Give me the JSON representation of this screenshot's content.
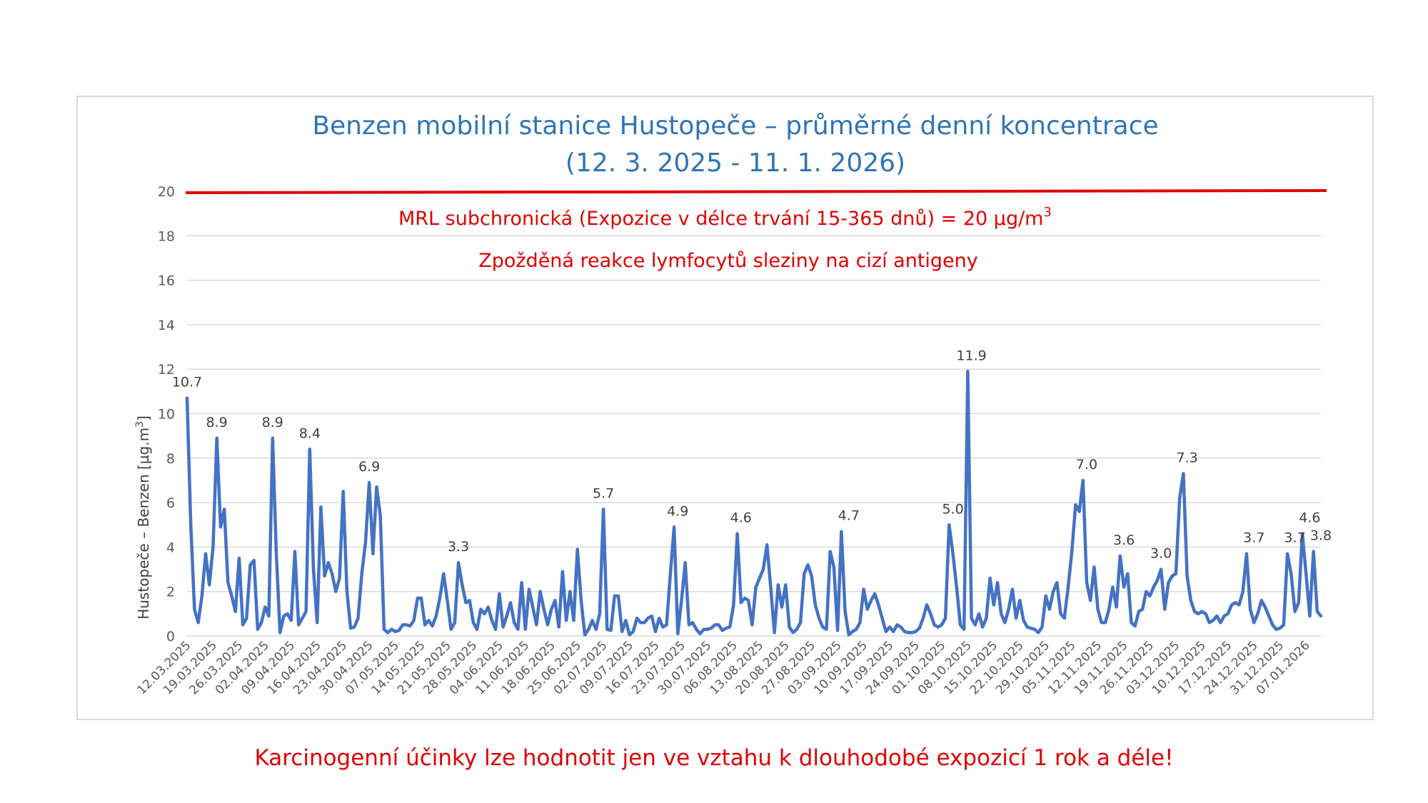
{
  "footer_note": "Karcinogenní účinky lze hodnotit jen ve vztahu k dlouhodobé expozicí 1 rok a déle!",
  "chart_data": {
    "type": "line",
    "title_line1": "Benzen mobilní stanice Hustopeče – průměrné denní koncentrace",
    "title_line2": "(12. 3. 2025 - 11. 1. 2026)",
    "ylabel_main": "Hustopeče – Benzen  [µg.m",
    "ylabel_sup": "3",
    "ylabel_end": "]",
    "ylim": [
      0,
      20
    ],
    "yticks": [
      "0",
      "2",
      "4",
      "6",
      "8",
      "10",
      "12",
      "14",
      "16",
      "18",
      "20"
    ],
    "grid": true,
    "x_start": "12.03.2025",
    "x_end": "11.01.2026",
    "x_tick_labels": [
      "12.03.2025",
      "19.03.2025",
      "26.03.2025",
      "02.04.2025",
      "09.04.2025",
      "16.04.2025",
      "23.04.2025",
      "30.04.2025",
      "07.05.2025",
      "14.05.2025",
      "21.05.2025",
      "28.05.2025",
      "04.06.2025",
      "11.06.2025",
      "18.06.2025",
      "25.06.2025",
      "02.07.2025",
      "09.07.2025",
      "16.07.2025",
      "23.07.2025",
      "30.07.2025",
      "06.08.2025",
      "13.08.2025",
      "20.08.2025",
      "27.08.2025",
      "03.09.2025",
      "10.09.2025",
      "17.09.2025",
      "24.09.2025",
      "01.10.2025",
      "08.10.2025",
      "15.10.2025",
      "22.10.2025",
      "29.10.2025",
      "05.11.2025",
      "12.11.2025",
      "19.11.2025",
      "26.11.2025",
      "03.12.2025",
      "10.12.2025",
      "17.12.2025",
      "24.12.2025",
      "31.12.2025",
      "07.01.2026"
    ],
    "limit_line": {
      "value": 20,
      "color": "#e00000",
      "label": "MRL subchronická (Expozice v délce trvání 15-365 dnů) = 20 µg/m",
      "label_sup": "3",
      "sublabel": "Zpožděná reakce lymfocytů sleziny na cizí antigeny"
    },
    "series": [
      {
        "color": "#4472c4",
        "values": [
          10.7,
          5.0,
          1.2,
          0.6,
          1.8,
          3.7,
          2.3,
          4.0,
          8.9,
          4.9,
          5.7,
          2.4,
          1.8,
          1.1,
          3.5,
          0.5,
          0.8,
          3.2,
          3.4,
          0.3,
          0.6,
          1.3,
          0.9,
          8.9,
          3.7,
          0.15,
          0.9,
          1.0,
          0.7,
          3.8,
          0.5,
          0.8,
          1.1,
          8.4,
          3.0,
          0.6,
          5.8,
          2.7,
          3.3,
          2.8,
          2.0,
          2.6,
          6.5,
          2.0,
          0.35,
          0.4,
          0.8,
          2.8,
          4.2,
          6.9,
          3.7,
          6.7,
          5.4,
          0.3,
          0.15,
          0.3,
          0.2,
          0.25,
          0.5,
          0.5,
          0.45,
          0.7,
          1.7,
          1.7,
          0.5,
          0.7,
          0.45,
          0.9,
          1.7,
          2.8,
          1.6,
          0.3,
          0.6,
          3.3,
          2.3,
          1.5,
          1.6,
          0.6,
          0.3,
          1.2,
          1.0,
          1.3,
          0.7,
          0.3,
          1.9,
          0.4,
          0.9,
          1.5,
          0.6,
          0.3,
          2.4,
          0.3,
          2.1,
          1.3,
          0.5,
          2.0,
          1.2,
          0.5,
          1.2,
          1.6,
          0.4,
          2.9,
          0.7,
          2.0,
          0.7,
          3.9,
          1.6,
          0.05,
          0.3,
          0.7,
          0.3,
          1.0,
          5.7,
          0.3,
          0.25,
          1.8,
          1.8,
          0.2,
          0.7,
          0.05,
          0.2,
          0.8,
          0.6,
          0.6,
          0.8,
          0.9,
          0.2,
          0.8,
          0.4,
          0.5,
          2.8,
          4.9,
          0.1,
          1.6,
          3.3,
          0.5,
          0.6,
          0.3,
          0.1,
          0.3,
          0.3,
          0.35,
          0.5,
          0.5,
          0.25,
          0.35,
          0.4,
          1.4,
          4.6,
          1.5,
          1.7,
          1.6,
          0.5,
          2.2,
          2.6,
          3.0,
          4.1,
          2.2,
          0.15,
          2.3,
          1.3,
          2.3,
          0.4,
          0.15,
          0.3,
          0.6,
          2.8,
          3.2,
          2.7,
          1.4,
          0.8,
          0.4,
          0.3,
          3.8,
          3.1,
          0.25,
          4.7,
          1.1,
          0.05,
          0.2,
          0.3,
          0.6,
          2.1,
          1.2,
          1.6,
          1.9,
          1.4,
          0.8,
          0.2,
          0.4,
          0.2,
          0.5,
          0.4,
          0.2,
          0.15,
          0.15,
          0.2,
          0.35,
          0.8,
          1.4,
          1.0,
          0.5,
          0.4,
          0.5,
          0.8,
          5.0,
          3.7,
          2.2,
          0.5,
          0.3,
          11.9,
          0.8,
          0.5,
          1.0,
          0.4,
          0.8,
          2.6,
          1.4,
          2.4,
          1.0,
          0.6,
          1.2,
          2.1,
          0.8,
          1.6,
          0.7,
          0.4,
          0.35,
          0.3,
          0.15,
          0.4,
          1.8,
          1.2,
          2.0,
          2.4,
          1.0,
          0.8,
          2.2,
          3.8,
          5.9,
          5.6,
          7.0,
          2.4,
          1.6,
          3.1,
          1.2,
          0.6,
          0.6,
          1.2,
          2.2,
          1.3,
          3.6,
          2.2,
          2.8,
          0.6,
          0.45,
          1.1,
          1.2,
          2.0,
          1.8,
          2.2,
          2.5,
          3.0,
          1.2,
          2.4,
          2.7,
          2.8,
          6.2,
          7.3,
          2.7,
          1.6,
          1.1,
          1.0,
          1.1,
          1.0,
          0.6,
          0.7,
          0.9,
          0.6,
          0.9,
          1.0,
          1.4,
          1.5,
          1.4,
          2.0,
          3.7,
          1.2,
          0.6,
          1.0,
          1.6,
          1.3,
          0.9,
          0.5,
          0.3,
          0.35,
          0.5,
          3.7,
          2.8,
          1.1,
          1.5,
          4.6,
          2.8,
          0.9,
          3.8,
          1.1,
          0.9
        ]
      }
    ],
    "data_labels": [
      {
        "text": "10.7",
        "index": 0,
        "value": 10.7
      },
      {
        "text": "8.9",
        "index": 8,
        "value": 8.9
      },
      {
        "text": "8.9",
        "index": 23,
        "value": 8.9
      },
      {
        "text": "8.4",
        "index": 33,
        "value": 8.4
      },
      {
        "text": "6.9",
        "index": 49,
        "value": 6.9
      },
      {
        "text": "3.3",
        "index": 73,
        "value": 3.3
      },
      {
        "text": "5.7",
        "index": 112,
        "value": 5.7
      },
      {
        "text": "4.9",
        "index": 132,
        "value": 4.9
      },
      {
        "text": "4.6",
        "index": 149,
        "value": 4.6
      },
      {
        "text": "4.7",
        "index": 178,
        "value": 4.7
      },
      {
        "text": "5.0",
        "index": 206,
        "value": 5.0
      },
      {
        "text": "11.9",
        "index": 211,
        "value": 11.9
      },
      {
        "text": "7.0",
        "index": 242,
        "value": 7.0
      },
      {
        "text": "3.6",
        "index": 252,
        "value": 3.6
      },
      {
        "text": "3.0",
        "index": 262,
        "value": 3.0
      },
      {
        "text": "7.3",
        "index": 269,
        "value": 7.3
      },
      {
        "text": "3.7",
        "index": 287,
        "value": 3.7
      },
      {
        "text": "3.7",
        "index": 298,
        "value": 3.7
      },
      {
        "text": "4.6",
        "index": 302,
        "value": 4.6
      },
      {
        "text": "3.8",
        "index": 305,
        "value": 3.8
      }
    ]
  }
}
